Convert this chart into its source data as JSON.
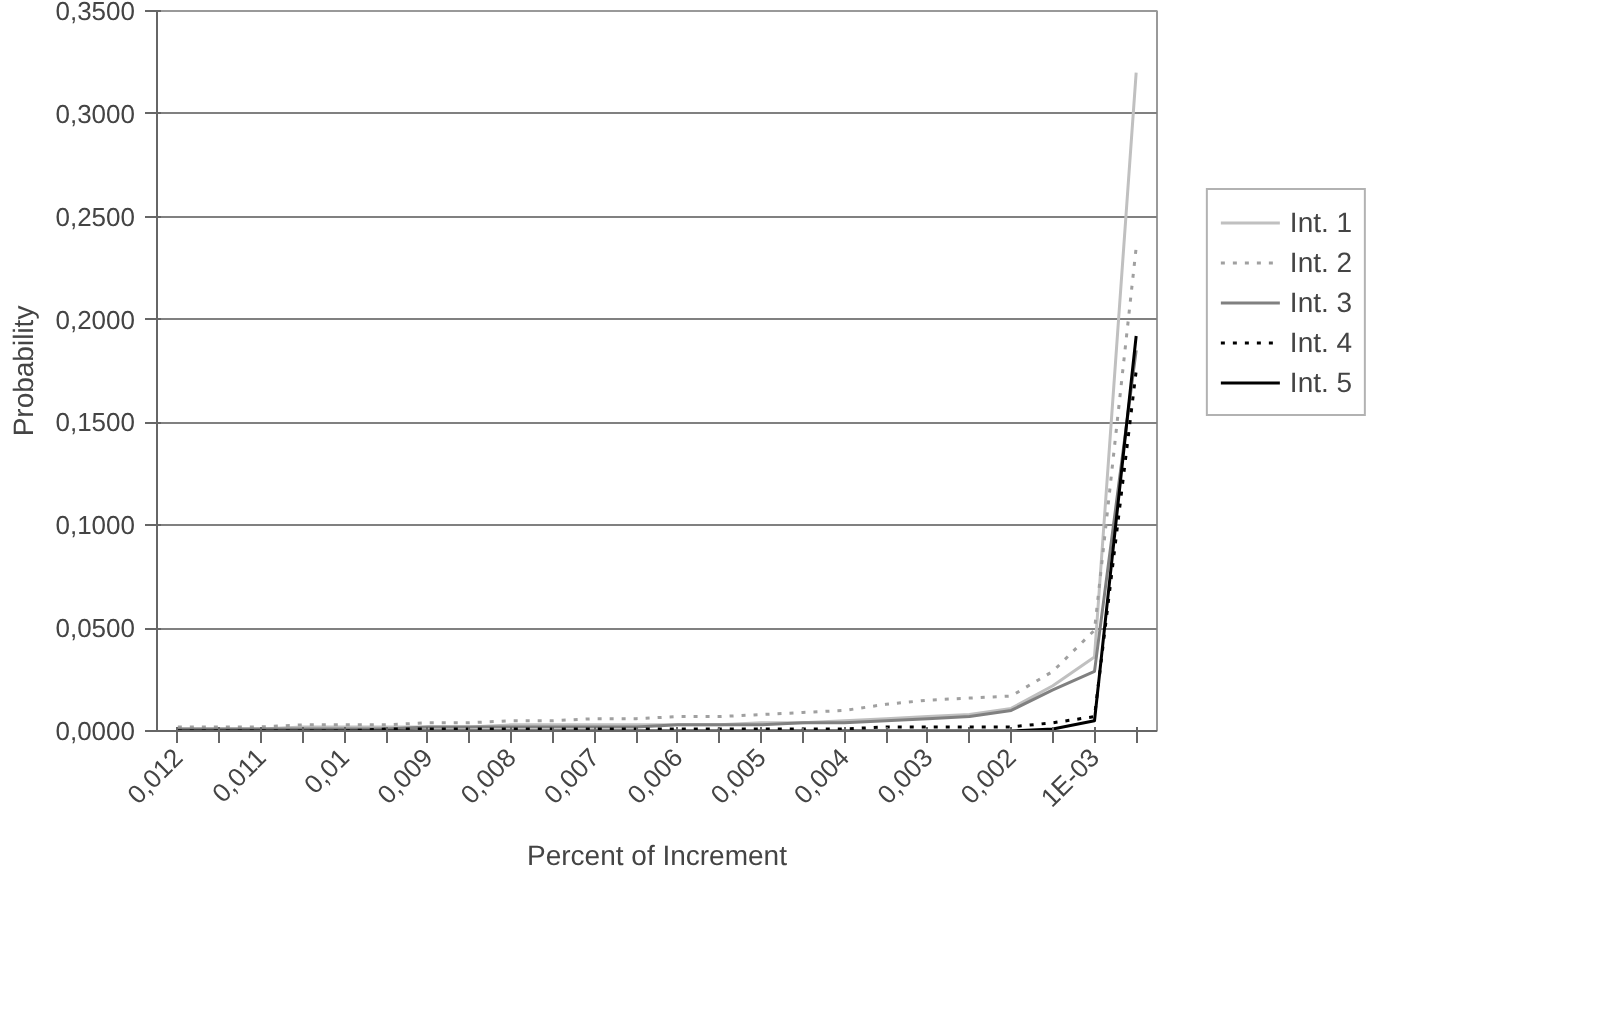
{
  "chart_data": {
    "type": "line",
    "xlabel": "Percent of Increment",
    "ylabel": "Probability",
    "categories": [
      "0,012",
      null,
      "0,011",
      null,
      "0,01",
      null,
      "0,009",
      null,
      "0,008",
      null,
      "0,007",
      null,
      "0,006",
      null,
      "0,005",
      null,
      "0,004",
      null,
      "0,003",
      null,
      "0,002",
      null,
      "1E-03",
      null
    ],
    "series": [
      {
        "name": "Int. 1",
        "color": "#c0c0c0",
        "line_style": "solid",
        "values": [
          0.001,
          0.001,
          0.001,
          0.002,
          0.002,
          0.002,
          0.002,
          0.002,
          0.003,
          0.003,
          0.003,
          0.003,
          0.003,
          0.003,
          0.004,
          0.004,
          0.005,
          0.006,
          0.007,
          0.008,
          0.011,
          0.022,
          0.036,
          0.32
        ]
      },
      {
        "name": "Int. 2",
        "color": "#a0a0a0",
        "line_style": "dotted",
        "values": [
          0.002,
          0.002,
          0.002,
          0.003,
          0.003,
          0.003,
          0.004,
          0.004,
          0.005,
          0.005,
          0.006,
          0.006,
          0.007,
          0.007,
          0.008,
          0.009,
          0.01,
          0.013,
          0.015,
          0.016,
          0.017,
          0.029,
          0.049,
          0.235
        ]
      },
      {
        "name": "Int. 3",
        "color": "#808080",
        "line_style": "solid",
        "values": [
          0.001,
          0.001,
          0.001,
          0.001,
          0.001,
          0.001,
          0.002,
          0.002,
          0.002,
          0.002,
          0.002,
          0.002,
          0.003,
          0.003,
          0.003,
          0.004,
          0.004,
          0.005,
          0.006,
          0.007,
          0.01,
          0.02,
          0.029,
          0.185
        ]
      },
      {
        "name": "Int. 4",
        "color": "#000000",
        "line_style": "dotted",
        "values": [
          0.0,
          0.0,
          0.0,
          0.0,
          0.0,
          0.001,
          0.001,
          0.001,
          0.001,
          0.001,
          0.001,
          0.001,
          0.001,
          0.001,
          0.001,
          0.001,
          0.001,
          0.002,
          0.002,
          0.002,
          0.002,
          0.004,
          0.007,
          0.175
        ]
      },
      {
        "name": "Int. 5",
        "color": "#000000",
        "line_style": "solid",
        "values": [
          0.0,
          0.0,
          0.0,
          0.0,
          0.0,
          0.0,
          0.0,
          0.0,
          0.0,
          0.0,
          0.0,
          0.0,
          0.0,
          0.0,
          0.0,
          0.0,
          0.0,
          0.0,
          0.0,
          0.0,
          0.0,
          0.001,
          0.005,
          0.192
        ]
      }
    ],
    "ylim": [
      0,
      0.35
    ],
    "yticks": [
      {
        "value": 0,
        "label": "0,0000"
      },
      {
        "value": 0.05,
        "label": "0,0500"
      },
      {
        "value": 0.1,
        "label": "0,1000"
      },
      {
        "value": 0.15,
        "label": "0,1500"
      },
      {
        "value": 0.2,
        "label": "0,2000"
      },
      {
        "value": 0.25,
        "label": "0,2500"
      },
      {
        "value": 0.3,
        "label": "0,3000"
      },
      {
        "value": 0.35,
        "label": "0,3500"
      }
    ],
    "grid": "y",
    "legend": "right",
    "marker": "none"
  }
}
